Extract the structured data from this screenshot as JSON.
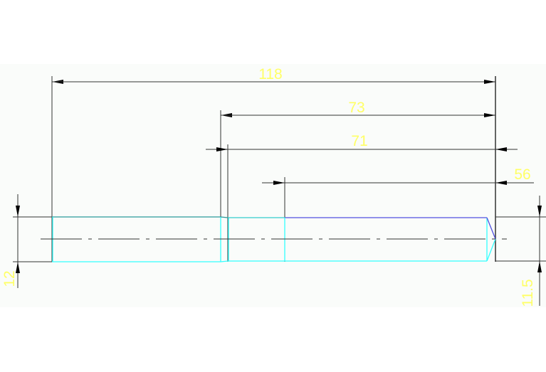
{
  "drawing": {
    "colors": {
      "background": "#fafcfa",
      "dimension_text": "#ffff66",
      "dimension_lines": "#222222",
      "part_outline": "#33ffff",
      "part_highlight": "#5050e0"
    },
    "dimensions": {
      "overall_length": "118",
      "length_73": "73",
      "length_71": "71",
      "length_56": "56",
      "left_diameter": "12",
      "right_diameter": "11.5"
    }
  }
}
